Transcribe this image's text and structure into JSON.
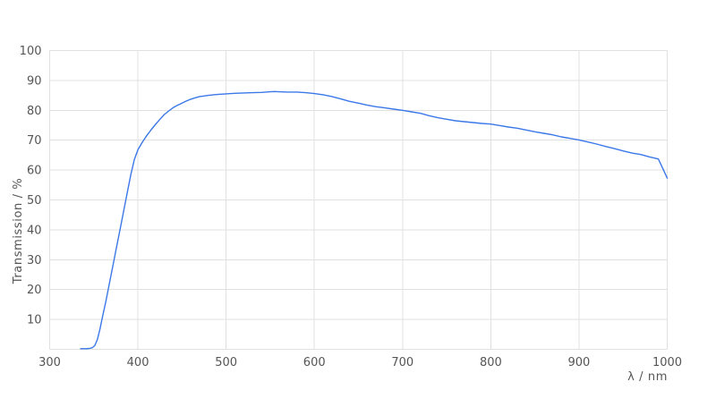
{
  "chart_data": {
    "type": "line",
    "title": "",
    "xlabel": "λ / nm",
    "ylabel": "Transmission / %",
    "xlim": [
      300,
      1000
    ],
    "ylim": [
      0,
      100
    ],
    "x_ticks": [
      300,
      400,
      500,
      600,
      700,
      800,
      900,
      1000
    ],
    "y_ticks": [
      10,
      20,
      30,
      40,
      50,
      60,
      70,
      80,
      90,
      100
    ],
    "grid": true,
    "legend": "none",
    "colors": {
      "line": "#3b78e8",
      "grid": "#e0e0e0",
      "text": "#555555",
      "background": "#ffffff"
    },
    "series": [
      {
        "name": "Transmission",
        "points": [
          [
            335,
            0.2
          ],
          [
            340,
            0.2
          ],
          [
            345,
            0.3
          ],
          [
            348,
            0.5
          ],
          [
            351,
            1.2
          ],
          [
            354,
            3.2
          ],
          [
            357,
            6.8
          ],
          [
            360,
            11.0
          ],
          [
            364,
            16.5
          ],
          [
            368,
            22.5
          ],
          [
            372,
            28.5
          ],
          [
            376,
            34.5
          ],
          [
            380,
            40.5
          ],
          [
            384,
            46.5
          ],
          [
            388,
            52.5
          ],
          [
            392,
            58.5
          ],
          [
            396,
            63.5
          ],
          [
            400,
            66.8
          ],
          [
            405,
            69.3
          ],
          [
            410,
            71.5
          ],
          [
            415,
            73.5
          ],
          [
            420,
            75.3
          ],
          [
            425,
            77.0
          ],
          [
            430,
            78.6
          ],
          [
            435,
            79.8
          ],
          [
            440,
            80.9
          ],
          [
            445,
            81.7
          ],
          [
            450,
            82.4
          ],
          [
            455,
            83.1
          ],
          [
            460,
            83.7
          ],
          [
            465,
            84.2
          ],
          [
            470,
            84.6
          ],
          [
            475,
            84.8
          ],
          [
            480,
            85.0
          ],
          [
            490,
            85.3
          ],
          [
            500,
            85.5
          ],
          [
            510,
            85.7
          ],
          [
            520,
            85.8
          ],
          [
            530,
            85.9
          ],
          [
            540,
            86.0
          ],
          [
            550,
            86.2
          ],
          [
            555,
            86.3
          ],
          [
            560,
            86.2
          ],
          [
            570,
            86.1
          ],
          [
            580,
            86.1
          ],
          [
            590,
            85.9
          ],
          [
            600,
            85.6
          ],
          [
            610,
            85.2
          ],
          [
            620,
            84.6
          ],
          [
            630,
            83.8
          ],
          [
            640,
            83.0
          ],
          [
            650,
            82.4
          ],
          [
            660,
            81.7
          ],
          [
            670,
            81.2
          ],
          [
            680,
            80.8
          ],
          [
            690,
            80.4
          ],
          [
            700,
            80.0
          ],
          [
            710,
            79.5
          ],
          [
            720,
            79.0
          ],
          [
            730,
            78.2
          ],
          [
            740,
            77.5
          ],
          [
            750,
            77.0
          ],
          [
            760,
            76.5
          ],
          [
            770,
            76.2
          ],
          [
            780,
            75.9
          ],
          [
            790,
            75.6
          ],
          [
            800,
            75.4
          ],
          [
            810,
            74.9
          ],
          [
            820,
            74.4
          ],
          [
            830,
            74.0
          ],
          [
            840,
            73.4
          ],
          [
            850,
            72.8
          ],
          [
            860,
            72.3
          ],
          [
            870,
            71.8
          ],
          [
            880,
            71.1
          ],
          [
            890,
            70.6
          ],
          [
            900,
            70.1
          ],
          [
            910,
            69.4
          ],
          [
            920,
            68.7
          ],
          [
            930,
            67.9
          ],
          [
            940,
            67.2
          ],
          [
            950,
            66.4
          ],
          [
            960,
            65.7
          ],
          [
            970,
            65.2
          ],
          [
            980,
            64.4
          ],
          [
            990,
            63.7
          ],
          [
            1000,
            57.3
          ]
        ]
      }
    ]
  }
}
